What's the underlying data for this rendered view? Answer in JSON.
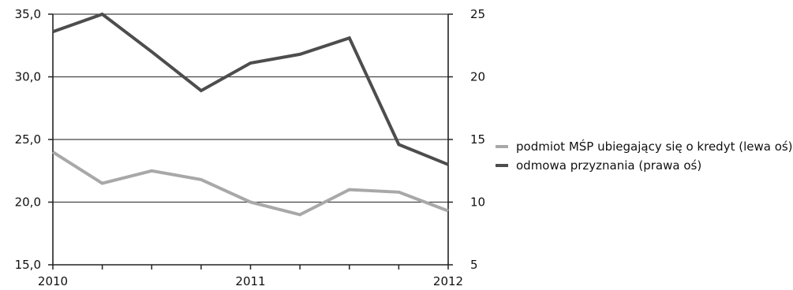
{
  "chart_data": {
    "type": "line",
    "title": "",
    "x_ticks": [
      "2010",
      "2011",
      "2012"
    ],
    "x_points": 9,
    "left_axis": {
      "ylim": [
        15,
        35
      ],
      "ticks": [
        "15,0",
        "20,0",
        "25,0",
        "30,0",
        "35,0"
      ]
    },
    "right_axis": {
      "ylim": [
        5,
        25
      ],
      "ticks": [
        "5",
        "10",
        "15",
        "20",
        "25"
      ]
    },
    "grid": "horizontal",
    "legend_position": "right",
    "series": [
      {
        "name": "podmiot MŚP ubiegający się o kredyt (lewa oś)",
        "axis": "left",
        "color": "#a8a8a8",
        "values": [
          24.0,
          21.5,
          22.5,
          21.8,
          20.0,
          19.0,
          21.0,
          20.8,
          19.3
        ]
      },
      {
        "name": "odmowa przyznania (prawa oś)",
        "axis": "right",
        "color": "#4d4d4d",
        "values": [
          23.6,
          25.0,
          22.0,
          18.9,
          21.1,
          21.8,
          23.1,
          14.6,
          13.0
        ]
      }
    ]
  }
}
